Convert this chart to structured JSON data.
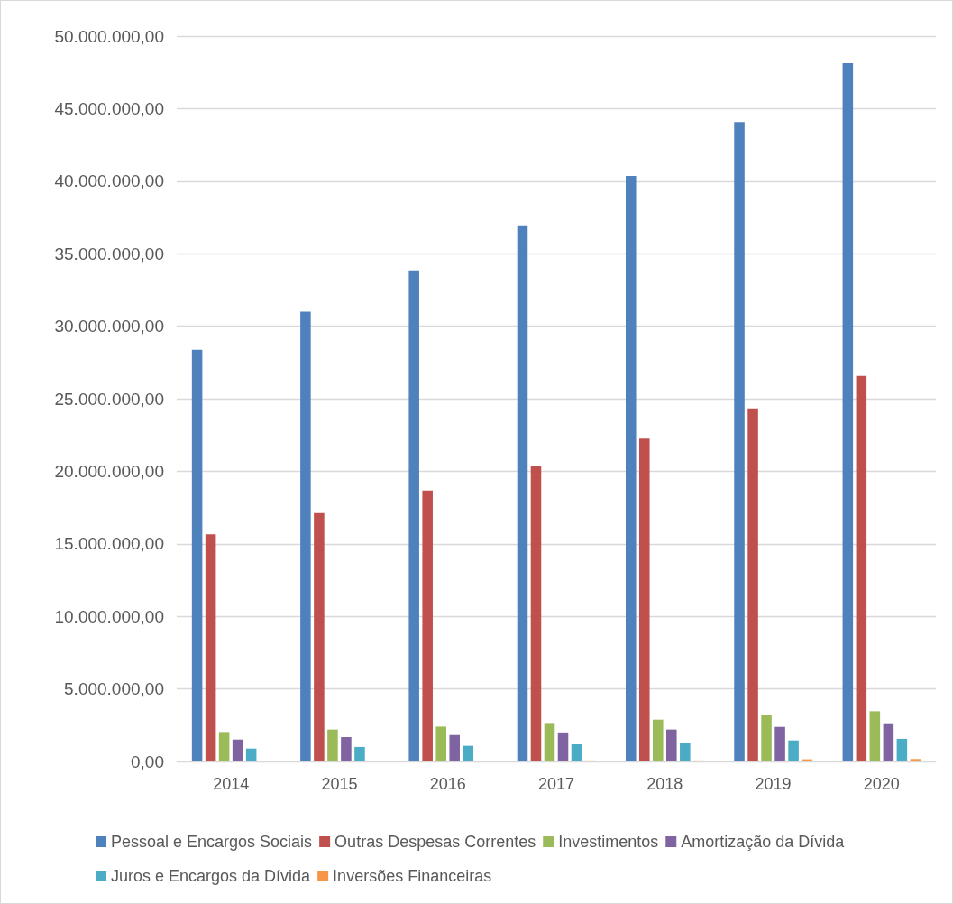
{
  "chart_data": {
    "type": "bar",
    "categories": [
      "2014",
      "2015",
      "2016",
      "2017",
      "2018",
      "2019",
      "2020"
    ],
    "series": [
      {
        "name": "Pessoal e Encargos Sociais",
        "color": "#4f81bd",
        "values": [
          28380000,
          31000000,
          33850000,
          36950000,
          40360000,
          44070000,
          48140000
        ]
      },
      {
        "name": "Outras Despesas Correntes",
        "color": "#c0504d",
        "values": [
          15660000,
          17110000,
          18670000,
          20390000,
          22250000,
          24330000,
          26570000
        ]
      },
      {
        "name": "Investimentos",
        "color": "#9bbb59",
        "values": [
          2030000,
          2200000,
          2400000,
          2650000,
          2880000,
          3170000,
          3460000
        ]
      },
      {
        "name": "Amortização da Dívida",
        "color": "#8064a2",
        "values": [
          1510000,
          1680000,
          1820000,
          2000000,
          2200000,
          2380000,
          2630000
        ]
      },
      {
        "name": "Juros e Encargos da Dívida",
        "color": "#4bacc6",
        "values": [
          890000,
          1000000,
          1080000,
          1180000,
          1280000,
          1450000,
          1560000
        ]
      },
      {
        "name": "Inversões Financeiras",
        "color": "#f79646",
        "values": [
          60000,
          60000,
          60000,
          70000,
          70000,
          150000,
          170000
        ]
      }
    ],
    "ylim": [
      0,
      50000000
    ],
    "yticks": [
      {
        "value": 0,
        "label": "0,00"
      },
      {
        "value": 5000000,
        "label": "5.000.000,00"
      },
      {
        "value": 10000000,
        "label": "10.000.000,00"
      },
      {
        "value": 15000000,
        "label": "15.000.000,00"
      },
      {
        "value": 20000000,
        "label": "20.000.000,00"
      },
      {
        "value": 25000000,
        "label": "25.000.000,00"
      },
      {
        "value": 30000000,
        "label": "30.000.000,00"
      },
      {
        "value": 35000000,
        "label": "35.000.000,00"
      },
      {
        "value": 40000000,
        "label": "40.000.000,00"
      },
      {
        "value": 45000000,
        "label": "45.000.000,00"
      },
      {
        "value": 50000000,
        "label": "50.000.000,00"
      }
    ],
    "grid": "y",
    "legend": "bottom"
  }
}
